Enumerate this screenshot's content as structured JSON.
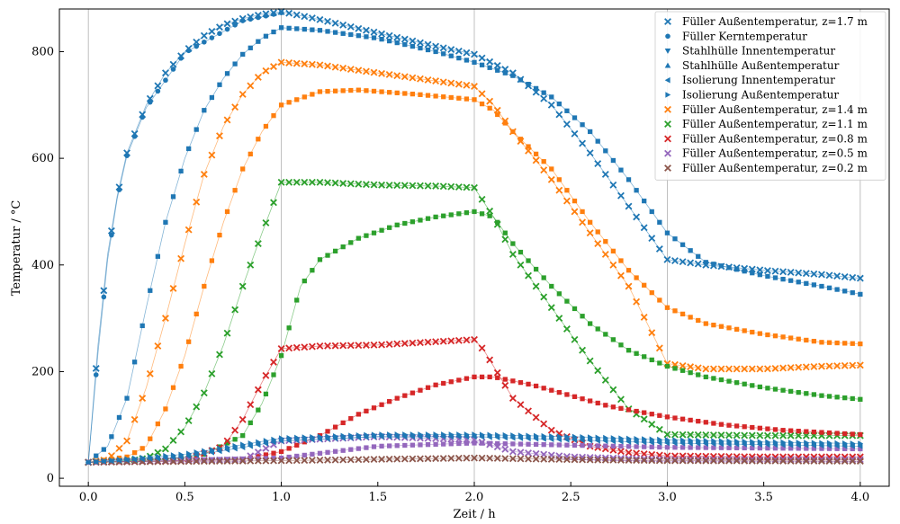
{
  "chart_data": {
    "type": "scatter",
    "title": "",
    "xlabel": "Zeit / h",
    "ylabel": "Temperatur / °C",
    "xlim": [
      -0.15,
      4.15
    ],
    "ylim": [
      -15,
      880
    ],
    "xticks": [
      "0.0",
      "0.5",
      "1.0",
      "1.5",
      "2.0",
      "2.5",
      "3.0",
      "3.5",
      "4.0"
    ],
    "yticks": [
      "0",
      "200",
      "400",
      "600",
      "800"
    ],
    "grid": "vertical lines at x = 0, 1, 2, 3, 4",
    "legend_position": "top-right",
    "marker_legend": [
      {
        "label": "Füller Außentemperatur, z=1.7 m",
        "marker": "x",
        "color": "#1f77b4"
      },
      {
        "label": "Füller Kerntemperatur",
        "marker": "circle",
        "color": "#1f77b4"
      },
      {
        "label": "Stahlhülle Innentemperatur",
        "marker": "triangle-down",
        "color": "#1f77b4"
      },
      {
        "label": "Stahlhülle Außentemperatur",
        "marker": "triangle-up",
        "color": "#1f77b4"
      },
      {
        "label": "Isolierung Innentemperatur",
        "marker": "triangle-left",
        "color": "#1f77b4"
      },
      {
        "label": "Isolierung Außentemperatur",
        "marker": "triangle-right",
        "color": "#1f77b4"
      },
      {
        "label": "Füller Außentemperatur, z=1.4 m",
        "marker": "x",
        "color": "#ff7f0e"
      },
      {
        "label": "Füller Außentemperatur, z=1.1 m",
        "marker": "x",
        "color": "#2ca02c"
      },
      {
        "label": "Füller Außentemperatur, z=0.8 m",
        "marker": "x",
        "color": "#d62728"
      },
      {
        "label": "Füller Außentemperatur, z=0.5 m",
        "marker": "x",
        "color": "#9467bd"
      },
      {
        "label": "Füller Außentemperatur, z=0.2 m",
        "marker": "x",
        "color": "#8c564b"
      }
    ],
    "series": [
      {
        "color": "#1f77b4",
        "marker": "x",
        "points": [
          [
            0,
            30
          ],
          [
            0.05,
            250
          ],
          [
            0.1,
            420
          ],
          [
            0.15,
            530
          ],
          [
            0.2,
            610
          ],
          [
            0.3,
            700
          ],
          [
            0.4,
            760
          ],
          [
            0.5,
            800
          ],
          [
            0.6,
            830
          ],
          [
            0.7,
            850
          ],
          [
            0.8,
            862
          ],
          [
            0.9,
            870
          ],
          [
            1.0,
            875
          ],
          [
            1.2,
            860
          ],
          [
            1.5,
            835
          ],
          [
            1.8,
            810
          ],
          [
            2.0,
            795
          ],
          [
            2.2,
            760
          ],
          [
            2.4,
            700
          ],
          [
            2.6,
            610
          ],
          [
            2.8,
            510
          ],
          [
            3.0,
            410
          ],
          [
            3.2,
            400
          ],
          [
            3.5,
            390
          ],
          [
            3.8,
            382
          ],
          [
            4.0,
            375
          ]
        ]
      },
      {
        "color": "#1f77b4",
        "marker": "circle",
        "points": [
          [
            0,
            30
          ],
          [
            0.05,
            235
          ],
          [
            0.1,
            410
          ],
          [
            0.15,
            525
          ],
          [
            0.2,
            605
          ],
          [
            0.3,
            695
          ],
          [
            0.5,
            798
          ],
          [
            0.8,
            858
          ],
          [
            1.0,
            873
          ]
        ]
      },
      {
        "color": "#1f77b4",
        "marker": "square",
        "points": [
          [
            0,
            30
          ],
          [
            0.1,
            60
          ],
          [
            0.2,
            150
          ],
          [
            0.3,
            320
          ],
          [
            0.4,
            480
          ],
          [
            0.5,
            600
          ],
          [
            0.6,
            690
          ],
          [
            0.7,
            750
          ],
          [
            0.8,
            795
          ],
          [
            0.9,
            825
          ],
          [
            1.0,
            845
          ],
          [
            1.2,
            840
          ],
          [
            1.5,
            825
          ],
          [
            1.8,
            800
          ],
          [
            2.0,
            780
          ],
          [
            2.2,
            755
          ],
          [
            2.4,
            715
          ],
          [
            2.6,
            650
          ],
          [
            2.8,
            560
          ],
          [
            3.0,
            460
          ],
          [
            3.2,
            405
          ],
          [
            3.5,
            380
          ],
          [
            3.8,
            360
          ],
          [
            4.0,
            345
          ]
        ]
      },
      {
        "color": "#ff7f0e",
        "marker": "x",
        "points": [
          [
            0,
            30
          ],
          [
            0.1,
            35
          ],
          [
            0.2,
            70
          ],
          [
            0.3,
            170
          ],
          [
            0.4,
            300
          ],
          [
            0.5,
            440
          ],
          [
            0.6,
            570
          ],
          [
            0.7,
            660
          ],
          [
            0.8,
            720
          ],
          [
            0.9,
            760
          ],
          [
            1.0,
            780
          ],
          [
            1.2,
            775
          ],
          [
            1.5,
            760
          ],
          [
            1.8,
            745
          ],
          [
            2.0,
            735
          ],
          [
            2.1,
            700
          ],
          [
            2.2,
            650
          ],
          [
            2.4,
            560
          ],
          [
            2.6,
            460
          ],
          [
            2.8,
            360
          ],
          [
            3.0,
            215
          ],
          [
            3.2,
            205
          ],
          [
            3.5,
            205
          ],
          [
            3.8,
            210
          ],
          [
            4.0,
            212
          ]
        ]
      },
      {
        "color": "#ff7f0e",
        "marker": "square",
        "points": [
          [
            0,
            30
          ],
          [
            0.2,
            40
          ],
          [
            0.3,
            60
          ],
          [
            0.4,
            130
          ],
          [
            0.5,
            230
          ],
          [
            0.6,
            360
          ],
          [
            0.7,
            480
          ],
          [
            0.8,
            580
          ],
          [
            0.9,
            650
          ],
          [
            1.0,
            700
          ],
          [
            1.2,
            725
          ],
          [
            1.4,
            728
          ],
          [
            1.7,
            720
          ],
          [
            2.0,
            710
          ],
          [
            2.1,
            690
          ],
          [
            2.2,
            650
          ],
          [
            2.4,
            580
          ],
          [
            2.6,
            480
          ],
          [
            2.8,
            390
          ],
          [
            3.0,
            320
          ],
          [
            3.2,
            290
          ],
          [
            3.5,
            270
          ],
          [
            3.8,
            255
          ],
          [
            4.0,
            252
          ]
        ]
      },
      {
        "color": "#2ca02c",
        "marker": "x",
        "points": [
          [
            0,
            30
          ],
          [
            0.2,
            32
          ],
          [
            0.3,
            38
          ],
          [
            0.4,
            55
          ],
          [
            0.5,
            95
          ],
          [
            0.6,
            160
          ],
          [
            0.7,
            250
          ],
          [
            0.8,
            360
          ],
          [
            0.9,
            460
          ],
          [
            1.0,
            555
          ],
          [
            1.2,
            555
          ],
          [
            1.5,
            550
          ],
          [
            1.8,
            548
          ],
          [
            2.0,
            545
          ],
          [
            2.1,
            490
          ],
          [
            2.2,
            420
          ],
          [
            2.4,
            320
          ],
          [
            2.6,
            220
          ],
          [
            2.8,
            130
          ],
          [
            3.0,
            82
          ],
          [
            3.5,
            80
          ],
          [
            4.0,
            80
          ]
        ]
      },
      {
        "color": "#2ca02c",
        "marker": "square",
        "points": [
          [
            0,
            30
          ],
          [
            0.4,
            35
          ],
          [
            0.6,
            45
          ],
          [
            0.8,
            80
          ],
          [
            0.9,
            140
          ],
          [
            1.0,
            230
          ],
          [
            1.1,
            360
          ],
          [
            1.2,
            410
          ],
          [
            1.4,
            450
          ],
          [
            1.6,
            475
          ],
          [
            1.8,
            490
          ],
          [
            2.0,
            500
          ],
          [
            2.1,
            490
          ],
          [
            2.2,
            440
          ],
          [
            2.4,
            360
          ],
          [
            2.6,
            290
          ],
          [
            2.8,
            240
          ],
          [
            3.0,
            210
          ],
          [
            3.2,
            190
          ],
          [
            3.5,
            170
          ],
          [
            3.8,
            155
          ],
          [
            4.0,
            148
          ]
        ]
      },
      {
        "color": "#d62728",
        "marker": "x",
        "points": [
          [
            0,
            30
          ],
          [
            0.5,
            33
          ],
          [
            0.7,
            60
          ],
          [
            0.8,
            110
          ],
          [
            0.9,
            180
          ],
          [
            1.0,
            243
          ],
          [
            1.2,
            248
          ],
          [
            1.5,
            250
          ],
          [
            1.8,
            256
          ],
          [
            2.0,
            260
          ],
          [
            2.05,
            240
          ],
          [
            2.2,
            150
          ],
          [
            2.4,
            90
          ],
          [
            2.6,
            60
          ],
          [
            2.8,
            48
          ],
          [
            3.0,
            42
          ],
          [
            3.5,
            40
          ],
          [
            4.0,
            40
          ]
        ]
      },
      {
        "color": "#d62728",
        "marker": "square",
        "points": [
          [
            0,
            30
          ],
          [
            0.8,
            35
          ],
          [
            1.0,
            50
          ],
          [
            1.2,
            80
          ],
          [
            1.4,
            120
          ],
          [
            1.6,
            150
          ],
          [
            1.8,
            175
          ],
          [
            2.0,
            190
          ],
          [
            2.1,
            190
          ],
          [
            2.3,
            175
          ],
          [
            2.5,
            155
          ],
          [
            2.7,
            135
          ],
          [
            3.0,
            115
          ],
          [
            3.3,
            100
          ],
          [
            3.6,
            90
          ],
          [
            4.0,
            82
          ]
        ]
      },
      {
        "color": "#9467bd",
        "marker": "x",
        "points": [
          [
            0,
            30
          ],
          [
            0.8,
            35
          ],
          [
            1.0,
            70
          ],
          [
            1.5,
            78
          ],
          [
            2.0,
            72
          ],
          [
            2.2,
            50
          ],
          [
            2.5,
            40
          ],
          [
            3.0,
            35
          ],
          [
            4.0,
            35
          ]
        ]
      },
      {
        "color": "#9467bd",
        "marker": "square",
        "points": [
          [
            0,
            30
          ],
          [
            1.0,
            38
          ],
          [
            1.5,
            60
          ],
          [
            2.0,
            66
          ],
          [
            2.5,
            62
          ],
          [
            3.0,
            58
          ],
          [
            4.0,
            55
          ]
        ]
      },
      {
        "color": "#8c564b",
        "marker": "x",
        "points": [
          [
            0,
            30
          ],
          [
            1.0,
            33
          ],
          [
            2.0,
            38
          ],
          [
            2.5,
            35
          ],
          [
            3.0,
            33
          ],
          [
            4.0,
            32
          ]
        ]
      },
      {
        "color": "#1f77b4",
        "marker": "triangle-right",
        "points": [
          [
            0,
            30
          ],
          [
            0.5,
            45
          ],
          [
            1.0,
            75
          ],
          [
            1.5,
            82
          ],
          [
            2.0,
            82
          ],
          [
            2.5,
            78
          ],
          [
            3.0,
            72
          ],
          [
            3.5,
            68
          ],
          [
            4.0,
            65
          ]
        ]
      },
      {
        "color": "#1f77b4",
        "marker": "triangle-left",
        "points": [
          [
            0,
            30
          ],
          [
            0.5,
            40
          ],
          [
            1.0,
            70
          ],
          [
            1.5,
            78
          ],
          [
            2.0,
            78
          ],
          [
            2.5,
            72
          ],
          [
            3.0,
            66
          ],
          [
            4.0,
            60
          ]
        ]
      }
    ]
  }
}
